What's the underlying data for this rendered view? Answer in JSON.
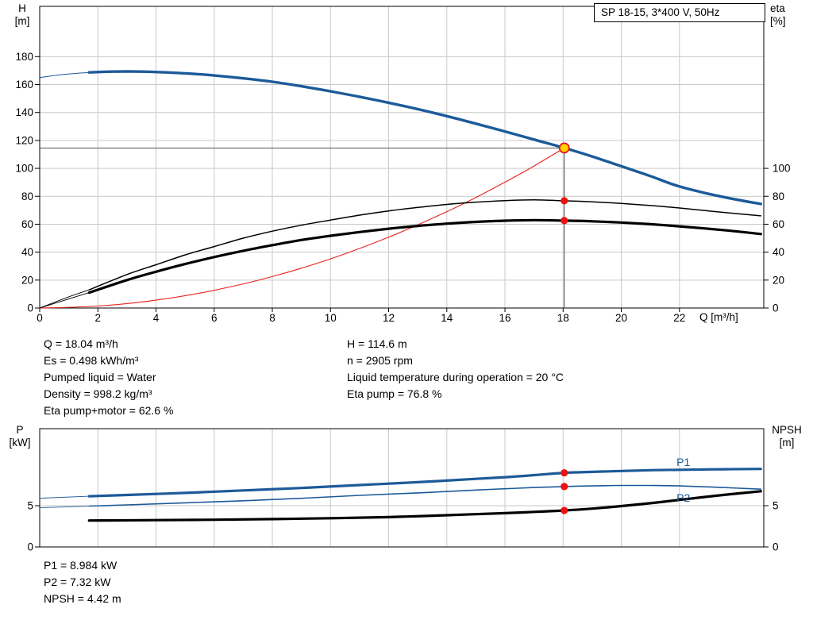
{
  "colors": {
    "curve_blue": "#1c5a99",
    "curve_black": "#000000",
    "curve_red": "#e8211d",
    "marker_red": "#ee1111",
    "duty_fill": "#ffd400",
    "grid": "#c9c9c9",
    "axis": "#000000",
    "crosshair": "#3a3a3a"
  },
  "info_top_left": [
    "Q = 18.04 m³/h",
    "Es = 0.498 kWh/m³",
    "Pumped liquid = Water",
    "Density = 998.2 kg/m³",
    "Eta pump+motor = 62.6 %"
  ],
  "info_top_right": [
    "H = 114.6 m",
    "n = 2905 rpm",
    "Liquid temperature during operation = 20 °C",
    "Eta pump = 76.8 %"
  ],
  "info_bottom": [
    "P1 = 8.984 kW",
    "P2 = 7.32 kW",
    "NPSH = 4.42 m"
  ],
  "chart_data": [
    {
      "type": "line",
      "title": "SP 18-15, 3*400 V, 50Hz",
      "xlabel": "Q [m³/h]",
      "ylabel_left": [
        "H",
        "[m]"
      ],
      "ylabel_right": [
        "eta",
        "[%]"
      ],
      "xlim": [
        0,
        24.9
      ],
      "ylim": [
        0,
        216
      ],
      "xticks": [
        0,
        2,
        4,
        6,
        8,
        10,
        12,
        14,
        16,
        18,
        20,
        22
      ],
      "yticks_left": [
        0,
        20,
        40,
        60,
        80,
        100,
        120,
        140,
        160,
        180
      ],
      "yticks_right": [
        0,
        20,
        40,
        60,
        80,
        100
      ],
      "grid": true,
      "crosshair": {
        "x": 18.04,
        "y": 114.6
      },
      "series": [
        {
          "name": "system-curve",
          "color": "curve_red",
          "width": 1.1,
          "points": [
            [
              0,
              0
            ],
            [
              2,
              1.4
            ],
            [
              4,
              5.6
            ],
            [
              6,
              12.7
            ],
            [
              8,
              22.5
            ],
            [
              10,
              35.2
            ],
            [
              12,
              50.7
            ],
            [
              14,
              69.0
            ],
            [
              15,
              79.2
            ],
            [
              16,
              90.1
            ],
            [
              17,
              101.7
            ],
            [
              18.04,
              114.6
            ]
          ]
        },
        {
          "name": "eta-pump",
          "color": "curve_black",
          "width": 1.5,
          "thin_until": 1.7,
          "points": [
            [
              0,
              0
            ],
            [
              1,
              8
            ],
            [
              1.7,
              13
            ],
            [
              3,
              24
            ],
            [
              4,
              31
            ],
            [
              5,
              38
            ],
            [
              6,
              44
            ],
            [
              7,
              50
            ],
            [
              8,
              55
            ],
            [
              9,
              59.3
            ],
            [
              10,
              63
            ],
            [
              11,
              66.5
            ],
            [
              12,
              69.5
            ],
            [
              13,
              72
            ],
            [
              14,
              74.2
            ],
            [
              15,
              75.8
            ],
            [
              16,
              76.9
            ],
            [
              17,
              77.4
            ],
            [
              18.04,
              76.8
            ],
            [
              19,
              76
            ],
            [
              20,
              74.9
            ],
            [
              21,
              73.4
            ],
            [
              22,
              71.6
            ],
            [
              23.5,
              68.5
            ],
            [
              24.8,
              66
            ]
          ]
        },
        {
          "name": "eta-pump-motor",
          "color": "curve_black",
          "width": 3.2,
          "thin_until": 1.7,
          "points": [
            [
              0,
              0
            ],
            [
              1,
              6.5
            ],
            [
              1.7,
              11
            ],
            [
              3,
              20
            ],
            [
              4,
              26
            ],
            [
              5,
              31.5
            ],
            [
              6,
              36.5
            ],
            [
              7,
              41
            ],
            [
              8,
              45
            ],
            [
              9,
              48.7
            ],
            [
              10,
              51.7
            ],
            [
              11,
              54.4
            ],
            [
              12,
              56.8
            ],
            [
              13,
              58.8
            ],
            [
              14,
              60.4
            ],
            [
              15,
              61.7
            ],
            [
              16,
              62.5
            ],
            [
              17,
              62.9
            ],
            [
              18.04,
              62.6
            ],
            [
              19,
              62.1
            ],
            [
              20,
              61.2
            ],
            [
              21,
              60
            ],
            [
              22,
              58.5
            ],
            [
              23.5,
              55.8
            ],
            [
              24.8,
              53
            ]
          ]
        },
        {
          "name": "h-curve",
          "color": "curve_blue",
          "width": 3.4,
          "thin_until": 1.7,
          "points": [
            [
              0,
              165
            ],
            [
              0.8,
              167.2
            ],
            [
              1.7,
              168.7
            ],
            [
              2.5,
              169.3
            ],
            [
              3.5,
              169.3
            ],
            [
              5,
              168
            ],
            [
              6,
              166.5
            ],
            [
              8,
              162
            ],
            [
              10,
              155.2
            ],
            [
              12,
              147
            ],
            [
              14,
              137.4
            ],
            [
              16,
              126.4
            ],
            [
              17,
              120.6
            ],
            [
              18.04,
              114.6
            ],
            [
              19,
              108.5
            ],
            [
              20,
              101.5
            ],
            [
              21,
              94.5
            ],
            [
              22,
              87
            ],
            [
              23.5,
              79.5
            ],
            [
              24.8,
              74.5
            ]
          ]
        }
      ],
      "markers": [
        {
          "x": 18.04,
          "y": 114.6,
          "kind": "duty"
        },
        {
          "x": 18.04,
          "y": 76.8,
          "kind": "dot"
        },
        {
          "x": 18.04,
          "y": 62.6,
          "kind": "dot"
        }
      ],
      "labels": []
    },
    {
      "type": "line",
      "title": "",
      "xlabel": "",
      "ylabel_left": [
        "P",
        "[kW]"
      ],
      "ylabel_right": [
        "NPSH",
        "[m]"
      ],
      "xlim": [
        0,
        24.9
      ],
      "ylim": [
        0,
        14.33
      ],
      "xticks": [
        2,
        4,
        6,
        8,
        10,
        12,
        14,
        16,
        18,
        20,
        22
      ],
      "yticks_left": [
        0,
        5
      ],
      "yticks_right": [
        0,
        5
      ],
      "grid": true,
      "series": [
        {
          "name": "p2",
          "color": "curve_blue",
          "width": 1.6,
          "thin_until": 1.7,
          "points": [
            [
              0,
              4.75
            ],
            [
              1.7,
              4.95
            ],
            [
              3,
              5.1
            ],
            [
              5,
              5.35
            ],
            [
              7,
              5.6
            ],
            [
              9,
              5.9
            ],
            [
              11,
              6.25
            ],
            [
              13,
              6.55
            ],
            [
              15,
              6.9
            ],
            [
              16,
              7.05
            ],
            [
              17,
              7.2
            ],
            [
              18.04,
              7.32
            ],
            [
              19,
              7.4
            ],
            [
              20,
              7.45
            ],
            [
              21,
              7.45
            ],
            [
              22,
              7.4
            ],
            [
              23.5,
              7.2
            ],
            [
              24.8,
              7.0
            ]
          ]
        },
        {
          "name": "p1",
          "color": "curve_blue",
          "width": 3.2,
          "thin_until": 1.7,
          "points": [
            [
              0,
              5.9
            ],
            [
              1.7,
              6.15
            ],
            [
              3,
              6.3
            ],
            [
              5,
              6.55
            ],
            [
              7,
              6.85
            ],
            [
              9,
              7.15
            ],
            [
              11,
              7.5
            ],
            [
              13,
              7.85
            ],
            [
              15,
              8.25
            ],
            [
              16,
              8.45
            ],
            [
              17,
              8.7
            ],
            [
              18.04,
              8.984
            ],
            [
              19,
              9.1
            ],
            [
              20,
              9.2
            ],
            [
              21,
              9.3
            ],
            [
              22,
              9.35
            ],
            [
              23.5,
              9.42
            ],
            [
              24.8,
              9.45
            ]
          ]
        },
        {
          "name": "npsh",
          "color": "curve_black",
          "width": 3.2,
          "points": [
            [
              1.7,
              3.2
            ],
            [
              4,
              3.25
            ],
            [
              6,
              3.3
            ],
            [
              8,
              3.38
            ],
            [
              10,
              3.48
            ],
            [
              12,
              3.62
            ],
            [
              14,
              3.85
            ],
            [
              16,
              4.1
            ],
            [
              17,
              4.25
            ],
            [
              18.04,
              4.42
            ],
            [
              19,
              4.65
            ],
            [
              20,
              4.95
            ],
            [
              21,
              5.3
            ],
            [
              22,
              5.7
            ],
            [
              23.5,
              6.3
            ],
            [
              24.8,
              6.75
            ]
          ]
        }
      ],
      "markers": [
        {
          "x": 18.04,
          "y": 8.984,
          "kind": "dot"
        },
        {
          "x": 18.04,
          "y": 7.32,
          "kind": "dot"
        },
        {
          "x": 18.04,
          "y": 4.42,
          "kind": "dot"
        }
      ],
      "labels": [
        {
          "text": "P1",
          "x": 21.9,
          "y": 9.8
        },
        {
          "text": "P2",
          "x": 21.9,
          "y": 5.5
        }
      ]
    }
  ]
}
